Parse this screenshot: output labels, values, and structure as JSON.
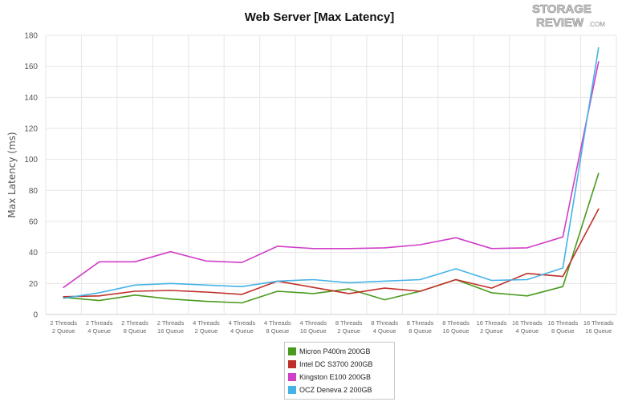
{
  "logo": {
    "line1": "STORAGE",
    "line2": "REVIEW",
    "suffix": ".COM"
  },
  "chart_data": {
    "type": "line",
    "title": "Web Server [Max Latency]",
    "xlabel": "",
    "ylabel": "Max Latency (ms)",
    "ylim": [
      0,
      180
    ],
    "yticks": [
      0,
      20,
      40,
      60,
      80,
      100,
      120,
      140,
      160,
      180
    ],
    "grid": true,
    "legend_position": "bottom-center",
    "categories": [
      [
        "2 Threads",
        "2 Queue"
      ],
      [
        "2 Threads",
        "4 Queue"
      ],
      [
        "2 Threads",
        "8 Queue"
      ],
      [
        "2 Threads",
        "16 Queue"
      ],
      [
        "4 Threads",
        "2 Queue"
      ],
      [
        "4 Threads",
        "4 Queue"
      ],
      [
        "4 Threads",
        "8 Queue"
      ],
      [
        "4 Threads",
        "16 Queue"
      ],
      [
        "8 Threads",
        "2 Queue"
      ],
      [
        "8 Threads",
        "4 Queue"
      ],
      [
        "8 Threads",
        "8 Queue"
      ],
      [
        "8 Threads",
        "16 Queue"
      ],
      [
        "16 Threads",
        "2 Queue"
      ],
      [
        "16 Threads",
        "4 Queue"
      ],
      [
        "16 Threads",
        "8 Queue"
      ],
      [
        "16 Threads",
        "16 Queue"
      ]
    ],
    "series": [
      {
        "name": "Micron P400m 200GB",
        "color": "#4a9a1e",
        "values": [
          11,
          9,
          12.5,
          10,
          8.5,
          7.5,
          15,
          13.5,
          16.5,
          9.5,
          15,
          22.5,
          14,
          12,
          18,
          91
        ]
      },
      {
        "name": "Intel DC S3700 200GB",
        "color": "#c0302a",
        "values": [
          11.5,
          12,
          15,
          15.5,
          14.5,
          13,
          21.5,
          17.5,
          13.5,
          17,
          15,
          22.5,
          17,
          26.5,
          24.5,
          68
        ]
      },
      {
        "name": "Kingston E100 200GB",
        "color": "#d13ec8",
        "values": [
          17.5,
          34,
          34,
          40.5,
          34.5,
          33.5,
          44,
          42.5,
          42.5,
          43,
          45,
          49.5,
          42.5,
          43,
          50,
          163
        ]
      },
      {
        "name": "OCZ Deneva 2 200GB",
        "color": "#45b2e6",
        "values": [
          10.5,
          14,
          19,
          20,
          19,
          18,
          21.5,
          22.5,
          20.5,
          21.5,
          22.5,
          29.5,
          22,
          22.5,
          30,
          172
        ]
      }
    ]
  }
}
